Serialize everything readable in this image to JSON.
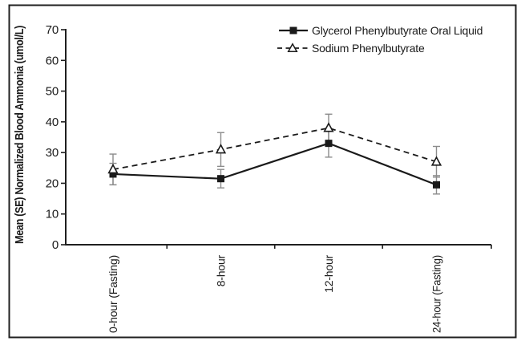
{
  "figure": {
    "background": "#ffffff",
    "border_color": "#1f1f1f"
  },
  "chart_data": {
    "type": "line",
    "title": "",
    "ylabel": "Mean (SE) Normalized Blood Ammonia (umol/L)",
    "xlabel": "",
    "ylim": [
      0,
      70
    ],
    "yticks": [
      0,
      10,
      20,
      30,
      40,
      50,
      60,
      70
    ],
    "categories": [
      "0-hour (Fasting)",
      "8-hour",
      "12-hour",
      "24-hour (Fasting)"
    ],
    "grid": false,
    "legend_position": "top-right",
    "error_bars": true,
    "error_bar_color": "#8c8c8c",
    "series": [
      {
        "name": "Glycerol Phenylbutyrate Oral Liquid",
        "line_style": "solid",
        "marker": "filled-square",
        "color": "#1a1a1a",
        "values": [
          23,
          21.5,
          33,
          19.5
        ],
        "se": [
          3.5,
          3,
          4.5,
          3
        ]
      },
      {
        "name": "Sodium Phenylbutyrate",
        "line_style": "dashed",
        "marker": "open-triangle",
        "color": "#1a1a1a",
        "values": [
          24.5,
          31,
          38,
          27
        ],
        "se": [
          5,
          5.5,
          4.5,
          5
        ]
      }
    ]
  }
}
